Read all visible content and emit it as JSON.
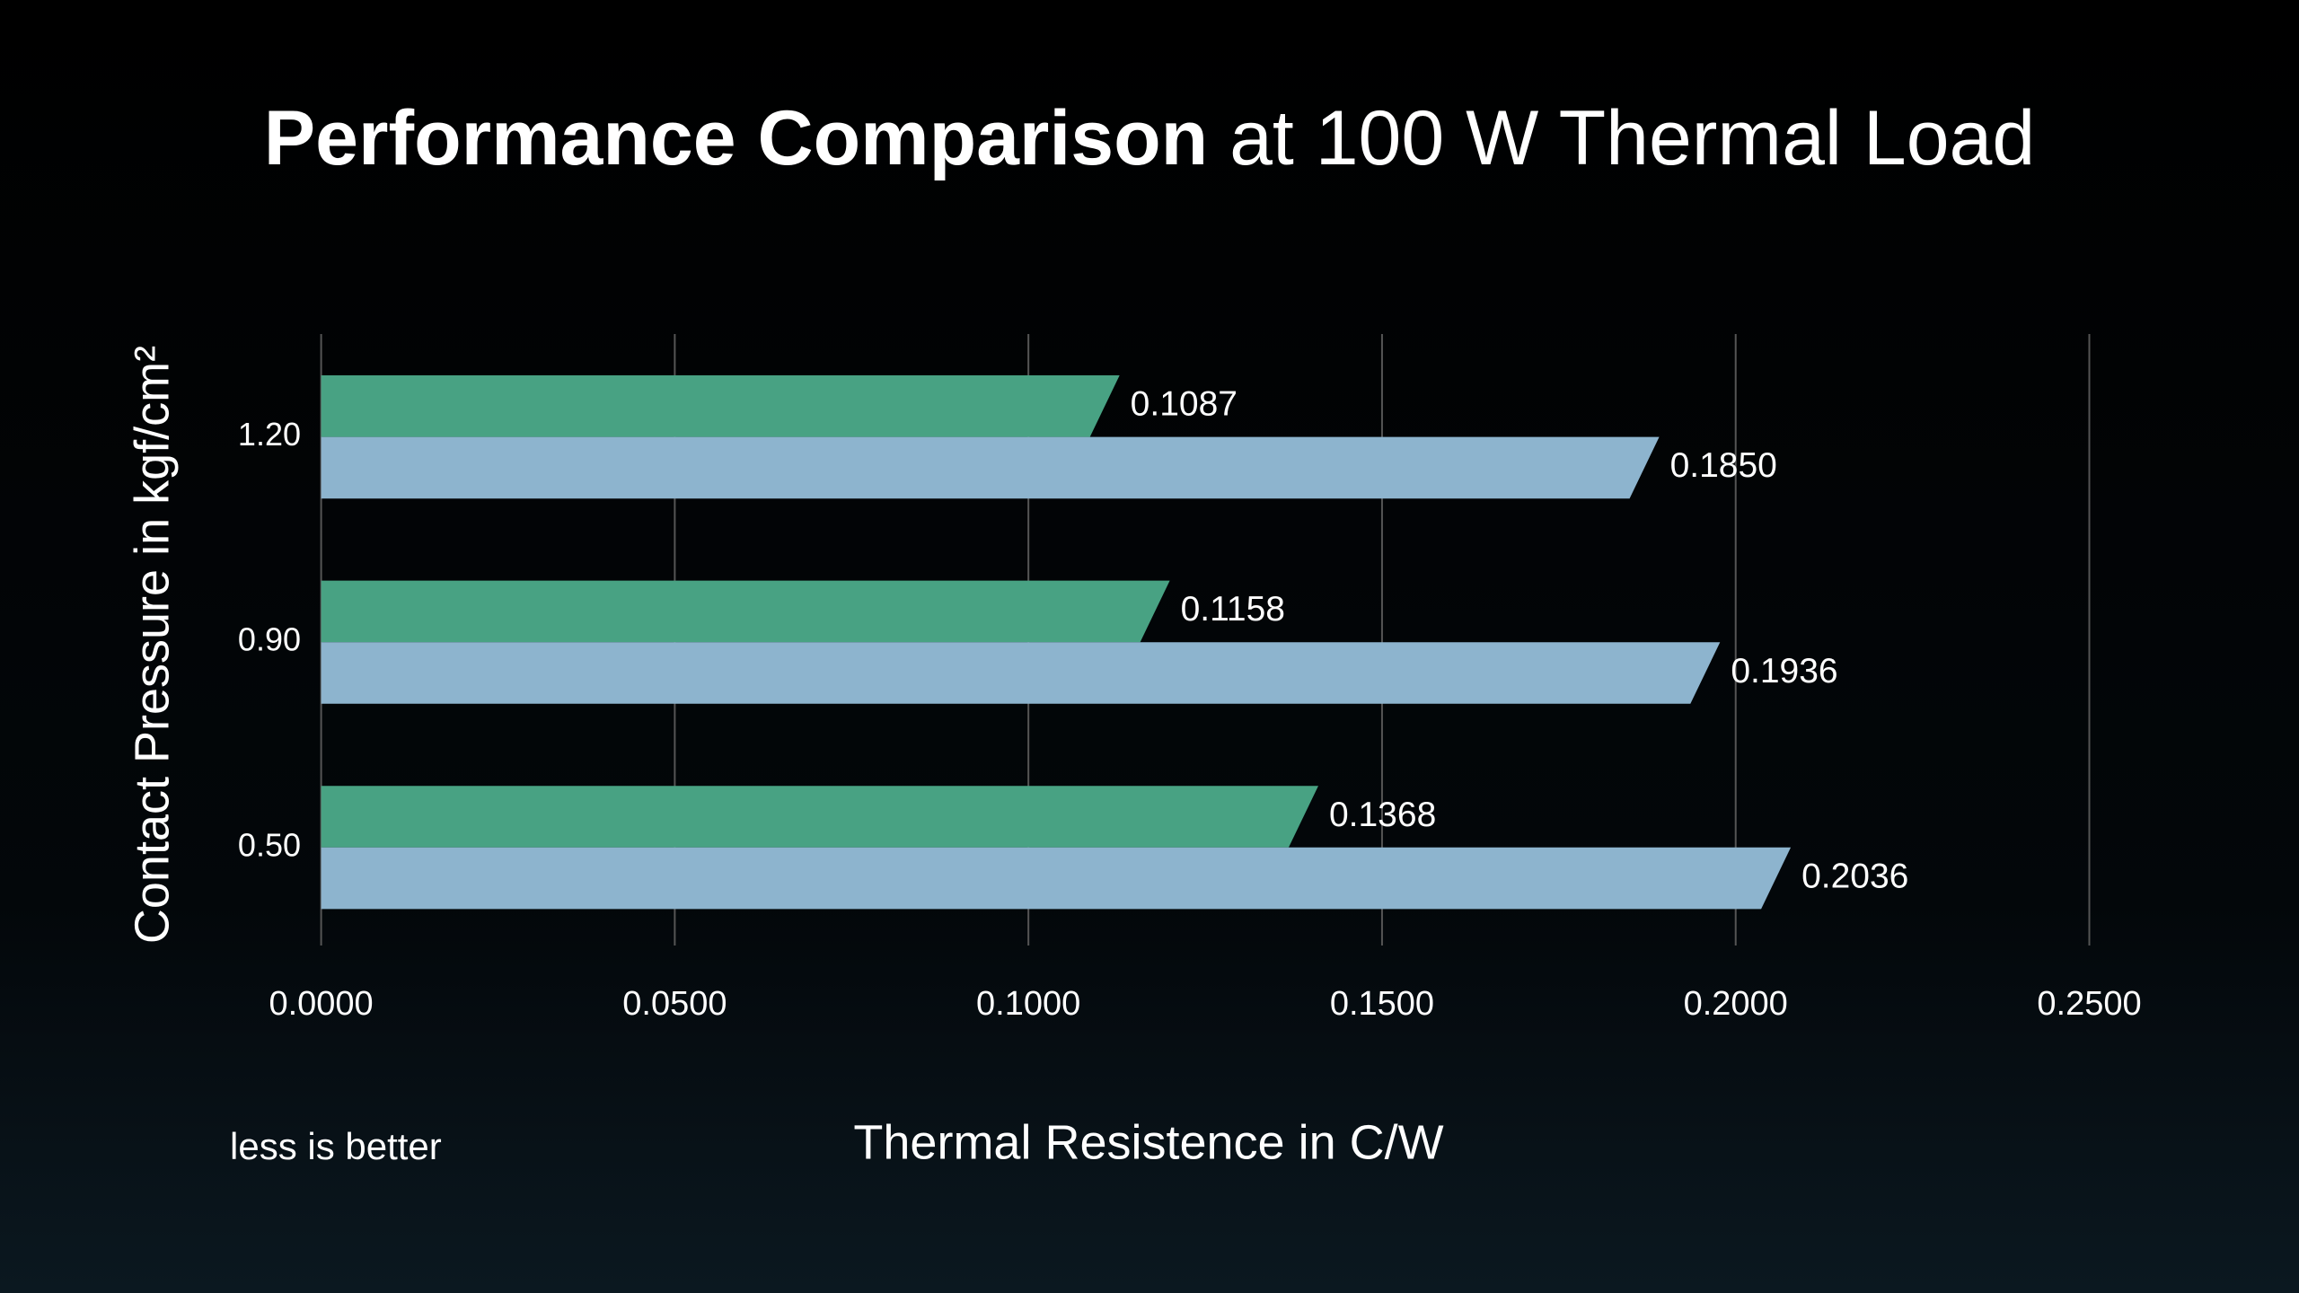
{
  "chart_data": {
    "type": "hbar",
    "title_bold": "Performance Comparison",
    "title_rest": "at 100 W Thermal Load",
    "x_label": "Thermal Resistence in C/W",
    "y_label": "Contact Pressure in kgf/cm²",
    "note": "less is better",
    "categories": [
      "1.20",
      "0.90",
      "0.50"
    ],
    "series": [
      {
        "color": "#48a283",
        "values": [
          0.1087,
          0.1158,
          0.1368
        ],
        "value_labels": [
          "0.1087",
          "0.1158",
          "0.1368"
        ]
      },
      {
        "color": "#8db4ce",
        "values": [
          0.185,
          0.1936,
          0.2036
        ],
        "value_labels": [
          "0.1850",
          "0.1936",
          "0.2036"
        ]
      }
    ],
    "xlim": [
      0,
      0.25
    ],
    "xticks": [
      {
        "value": 0,
        "label": "0.0000"
      },
      {
        "value": 0.05,
        "label": "0.0500"
      },
      {
        "value": 0.1,
        "label": "0.1000"
      },
      {
        "value": 0.15,
        "label": "0.1500"
      },
      {
        "value": 0.2,
        "label": "0.2000"
      },
      {
        "value": 0.25,
        "label": "0.2500"
      }
    ],
    "grid": true
  }
}
